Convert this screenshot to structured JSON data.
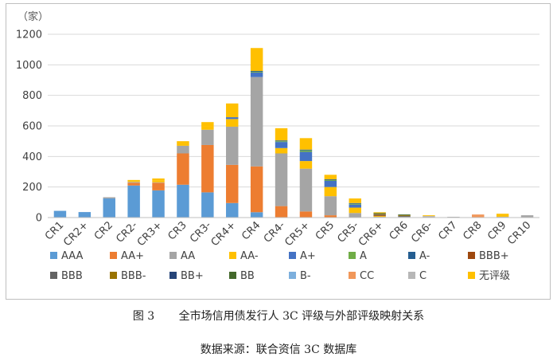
{
  "caption": {
    "figure_label": "图 3",
    "figure_title": "全市场信用债发行人 3C 评级与外部评级映射关系",
    "source": "数据来源：联合资信 3C 数据库"
  },
  "chart_data": {
    "type": "bar",
    "stacked": true,
    "title": "",
    "ylabel": "（家）",
    "xlabel": "",
    "ylim": [
      0,
      1200
    ],
    "yticks": [
      0,
      200,
      400,
      600,
      800,
      1000,
      1200
    ],
    "grid": true,
    "legend_position": "bottom",
    "categories": [
      "CR1",
      "CR2+",
      "CR2",
      "CR2-",
      "CR3+",
      "CR3",
      "CR3-",
      "CR4+",
      "CR4",
      "CR4-",
      "CR5+",
      "CR5",
      "CR5-",
      "CR6+",
      "CR6",
      "CR6-",
      "CR7",
      "CR8",
      "CR9",
      "CR10"
    ],
    "series": [
      {
        "name": "AAA",
        "color": "#5b9bd5",
        "values": [
          44,
          36,
          125,
          210,
          178,
          215,
          165,
          95,
          35,
          0,
          0,
          0,
          0,
          0,
          0,
          0,
          0,
          0,
          0,
          0
        ]
      },
      {
        "name": "AA+",
        "color": "#ed7d31",
        "values": [
          0,
          0,
          0,
          18,
          50,
          205,
          310,
          250,
          300,
          75,
          40,
          15,
          0,
          0,
          0,
          0,
          0,
          0,
          0,
          0
        ]
      },
      {
        "name": "AA",
        "color": "#a5a5a5",
        "values": [
          0,
          0,
          8,
          5,
          3,
          50,
          100,
          250,
          585,
          345,
          280,
          125,
          30,
          5,
          5,
          5,
          5,
          0,
          5,
          15
        ]
      },
      {
        "name": "AA-",
        "color": "#ffc000",
        "values": [
          0,
          0,
          0,
          5,
          10,
          18,
          20,
          50,
          0,
          35,
          50,
          60,
          35,
          5,
          0,
          0,
          0,
          0,
          5,
          0
        ]
      },
      {
        "name": "A+",
        "color": "#4472c4",
        "values": [
          0,
          0,
          0,
          0,
          0,
          0,
          0,
          12,
          30,
          40,
          60,
          40,
          20,
          0,
          0,
          0,
          0,
          0,
          0,
          0
        ]
      },
      {
        "name": "A",
        "color": "#70ad47",
        "values": [
          0,
          0,
          0,
          0,
          0,
          0,
          0,
          0,
          5,
          5,
          10,
          5,
          5,
          0,
          0,
          0,
          0,
          0,
          0,
          0
        ]
      },
      {
        "name": "A-",
        "color": "#255e91",
        "values": [
          0,
          0,
          0,
          0,
          0,
          0,
          0,
          0,
          5,
          5,
          5,
          5,
          5,
          0,
          0,
          0,
          0,
          0,
          0,
          0
        ]
      },
      {
        "name": "BBB+",
        "color": "#9e480e",
        "values": [
          0,
          0,
          0,
          0,
          0,
          0,
          0,
          0,
          0,
          0,
          0,
          0,
          0,
          5,
          0,
          0,
          0,
          0,
          0,
          0
        ]
      },
      {
        "name": "BBB",
        "color": "#636363",
        "values": [
          0,
          0,
          0,
          0,
          0,
          0,
          0,
          0,
          0,
          0,
          0,
          0,
          0,
          5,
          5,
          0,
          0,
          0,
          0,
          0
        ]
      },
      {
        "name": "BBB-",
        "color": "#997300",
        "values": [
          0,
          0,
          0,
          0,
          0,
          0,
          0,
          0,
          0,
          0,
          0,
          0,
          0,
          5,
          5,
          0,
          0,
          0,
          0,
          0
        ]
      },
      {
        "name": "BB+",
        "color": "#264478",
        "values": [
          0,
          0,
          0,
          0,
          0,
          0,
          0,
          0,
          0,
          0,
          0,
          0,
          0,
          0,
          0,
          0,
          0,
          0,
          0,
          0
        ]
      },
      {
        "name": "BB",
        "color": "#43682b",
        "values": [
          0,
          0,
          0,
          0,
          0,
          0,
          0,
          0,
          0,
          0,
          0,
          0,
          0,
          5,
          5,
          0,
          0,
          0,
          0,
          0
        ]
      },
      {
        "name": "B-",
        "color": "#7cafdd",
        "values": [
          0,
          0,
          0,
          0,
          0,
          0,
          0,
          0,
          0,
          0,
          0,
          0,
          0,
          0,
          0,
          0,
          0,
          0,
          0,
          0
        ]
      },
      {
        "name": "CC",
        "color": "#f1975a",
        "values": [
          0,
          0,
          0,
          0,
          0,
          0,
          0,
          0,
          0,
          0,
          0,
          0,
          0,
          0,
          0,
          0,
          0,
          20,
          0,
          0
        ]
      },
      {
        "name": "C",
        "color": "#b7b7b7",
        "values": [
          0,
          0,
          0,
          0,
          0,
          0,
          0,
          0,
          0,
          0,
          0,
          0,
          0,
          0,
          0,
          5,
          0,
          0,
          0,
          0
        ]
      },
      {
        "name": "无评级",
        "color": "#ffc000",
        "values": [
          0,
          0,
          0,
          8,
          15,
          12,
          30,
          90,
          150,
          80,
          75,
          30,
          30,
          5,
          0,
          5,
          0,
          0,
          15,
          0
        ]
      }
    ]
  }
}
